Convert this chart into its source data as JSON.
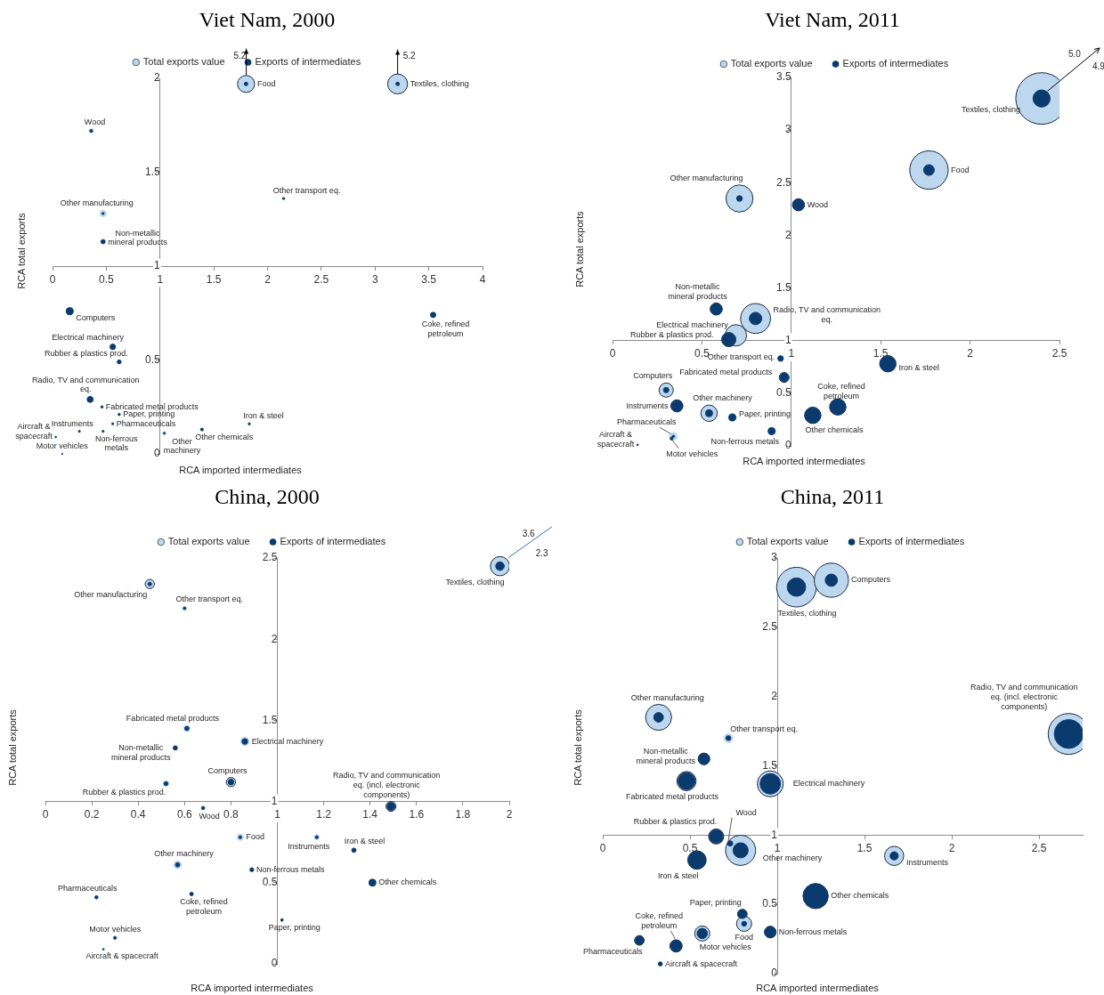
{
  "chart_data": [
    {
      "type": "bubble",
      "title": "Viet Nam, 2000",
      "xlabel": "RCA imported intermediates",
      "ylabel": "RCA total exports",
      "x": [
        1.8,
        3.21,
        0.36,
        2.15,
        0.47,
        0.47,
        0.16,
        0.56,
        0.62,
        3.54,
        0.35,
        0.46,
        0.62,
        0.56,
        0.25,
        0.03,
        0.47,
        0.09,
        1.04,
        1.39,
        1.83
      ],
      "series": [
        {
          "name": "Total exports value",
          "color": "#bdd7ee",
          "values": [
            1.97,
            1.97,
            1.72,
            1.36,
            1.28,
            null,
            null,
            null,
            null,
            null,
            null,
            null,
            null,
            null,
            null,
            null,
            null,
            null,
            0.11,
            null,
            null
          ],
          "sizes": [
            0.735,
            1,
            0.046,
            0.02,
            0.103,
            null,
            null,
            null,
            null,
            null,
            null,
            null,
            null,
            null,
            null,
            null,
            null,
            null,
            0.032,
            null,
            null
          ]
        },
        {
          "name": "Exports of intermediates",
          "color": "#0b3b6e",
          "values": [
            1.97,
            1.97,
            1.72,
            1.36,
            1.28,
            1.13,
            0.76,
            0.57,
            0.49,
            0.74,
            0.29,
            0.25,
            0.21,
            0.16,
            0.12,
            0.09,
            0.12,
            0,
            0.11,
            0.13,
            0.16
          ],
          "sizes": [
            0.032,
            0.032,
            0.02,
            0.01,
            0.011,
            0.046,
            0.128,
            0.077,
            0.039,
            0.072,
            0.092,
            0.013,
            0.013,
            0.01,
            0.01,
            0.006,
            0.01,
            0.004,
            0.008,
            0.02,
            0.011
          ]
        }
      ],
      "xlim": [
        0,
        4
      ],
      "ylim": [
        0,
        2
      ],
      "xticks": [
        0,
        0.5,
        1,
        1.5,
        2,
        2.5,
        3,
        3.5,
        4
      ],
      "yticks": [
        0,
        0.5,
        1,
        1.5,
        2
      ],
      "legend": "top",
      "annotations": [
        {
          "text": "Food",
          "x": 1.8,
          "y": 1.97
        },
        {
          "text": "Textiles, clothing",
          "x": 3.21,
          "y": 1.97
        },
        {
          "text": "Wood",
          "x": 0.36,
          "y": 1.72
        },
        {
          "text": "Other transport eq.",
          "x": 2.15,
          "y": 1.36
        },
        {
          "text": "Other manufacturing",
          "x": 0.47,
          "y": 1.28
        },
        {
          "text": "Non-metallic mineral products",
          "x": 0.47,
          "y": 1.13
        },
        {
          "text": "Computers",
          "x": 0.16,
          "y": 0.76
        },
        {
          "text": "Electrical machinery",
          "x": 0.56,
          "y": 0.57
        },
        {
          "text": "Rubber & plastics prod.",
          "x": 0.62,
          "y": 0.49
        },
        {
          "text": "Coke, refined petroleum",
          "x": 3.54,
          "y": 0.74
        },
        {
          "text": "Radio, TV and communication eq.",
          "x": 0.35,
          "y": 0.29
        },
        {
          "text": "Fabricated metal products",
          "x": 0.46,
          "y": 0.25
        },
        {
          "text": "Paper, printing",
          "x": 0.62,
          "y": 0.21
        },
        {
          "text": "Pharmaceuticals",
          "x": 0.56,
          "y": 0.16
        },
        {
          "text": "Instruments",
          "x": 0.25,
          "y": 0.12
        },
        {
          "text": "Aircraft & spacecraft",
          "x": 0.03,
          "y": 0.09
        },
        {
          "text": "Non-ferrous metals",
          "x": 0.47,
          "y": 0.12
        },
        {
          "text": "Motor vehicles",
          "x": 0.09,
          "y": 0
        },
        {
          "text": "Other machinery",
          "x": 1.04,
          "y": 0.11
        },
        {
          "text": "Other chemicals",
          "x": 1.39,
          "y": 0.13
        },
        {
          "text": "Iron & steel",
          "x": 1.83,
          "y": 0.16
        },
        {
          "text": "5.2",
          "x": 1.8,
          "y": 1.97
        },
        {
          "text": "5.2",
          "x": 3.21,
          "y": 1.97
        }
      ]
    },
    {
      "type": "bubble",
      "title": "Viet Nam, 2011",
      "xlabel": "RCA imported intermediates",
      "ylabel": "RCA total exports",
      "x": [
        2.4,
        1.77,
        0.71,
        1.04,
        0.58,
        0.8,
        0.69,
        0.65,
        0.94,
        1.54,
        0.96,
        0.3,
        1.26,
        0.36,
        0.54,
        0.67,
        1.12,
        0.89,
        0.34,
        0.33,
        0.14
      ],
      "series": [
        {
          "name": "Total exports value",
          "color": "#bdd7ee",
          "values": [
            3.3,
            2.62,
            2.35,
            2.29,
            1.3,
            1.21,
            1.05,
            1.01,
            0.83,
            0.78,
            0.65,
            0.53,
            0.37,
            0.38,
            0.31,
            0.27,
            0.29,
            0.14,
            0.09,
            null,
            null
          ],
          "sizes": [
            1,
            0.555,
            0.275,
            0.055,
            0.055,
            0.336,
            0.171,
            0.076,
            0.015,
            0.101,
            0.037,
            0.076,
            0.101,
            0.055,
            0.101,
            0.023,
            0.101,
            0.023,
            0.023,
            null,
            null
          ]
        },
        {
          "name": "Exports of intermediates",
          "color": "#0b3b6e",
          "values": [
            3.3,
            2.62,
            2.35,
            2.29,
            1.3,
            1.21,
            null,
            1.01,
            0.83,
            0.78,
            0.65,
            0.53,
            0.37,
            0.38,
            0.31,
            0.27,
            0.29,
            0.14,
            0.09,
            0.07,
            0.01
          ],
          "sizes": [
            0.11,
            0.043,
            0.012,
            0.049,
            0.049,
            0.058,
            null,
            0.069,
            0.011,
            0.092,
            0.027,
            0.011,
            0.092,
            0.049,
            0.019,
            0.019,
            0.092,
            0.019,
            0.002,
            0.003,
            0.001
          ]
        }
      ],
      "xlim": [
        0,
        2.5
      ],
      "ylim": [
        0,
        3.5
      ],
      "xticks": [
        0,
        0.5,
        1,
        1.5,
        2,
        2.5
      ],
      "yticks": [
        0,
        0.5,
        1,
        1.5,
        2,
        2.5,
        3,
        3.5
      ],
      "legend": "top",
      "annotations": [
        {
          "text": "Textiles, clothing",
          "x": 2.4,
          "y": 3.3
        },
        {
          "text": "Food",
          "x": 1.77,
          "y": 2.62
        },
        {
          "text": "Other manufacturing",
          "x": 0.71,
          "y": 2.35
        },
        {
          "text": "Wood",
          "x": 1.04,
          "y": 2.29
        },
        {
          "text": "Non-metallic mineral products",
          "x": 0.58,
          "y": 1.3
        },
        {
          "text": "Radio, TV and communication eq.",
          "x": 0.8,
          "y": 1.21
        },
        {
          "text": "Electrical machinery",
          "x": 0.69,
          "y": 1.05
        },
        {
          "text": "Rubber & plastics prod.",
          "x": 0.65,
          "y": 1.01
        },
        {
          "text": "Other transport eq.",
          "x": 0.94,
          "y": 0.83
        },
        {
          "text": "Iron & steel",
          "x": 1.54,
          "y": 0.78
        },
        {
          "text": "Fabricated metal products",
          "x": 0.96,
          "y": 0.65
        },
        {
          "text": "Computers",
          "x": 0.3,
          "y": 0.53
        },
        {
          "text": "Coke, refined petroleum",
          "x": 1.26,
          "y": 0.37
        },
        {
          "text": "Instruments",
          "x": 0.36,
          "y": 0.38
        },
        {
          "text": "Other machinery",
          "x": 0.54,
          "y": 0.31
        },
        {
          "text": "Paper, printing",
          "x": 0.67,
          "y": 0.27
        },
        {
          "text": "Other chemicals",
          "x": 1.12,
          "y": 0.29
        },
        {
          "text": "Non-ferrous metals",
          "x": 0.89,
          "y": 0.14
        },
        {
          "text": "Pharmaceuticals",
          "x": 0.34,
          "y": 0.09
        },
        {
          "text": "Motor vehicles",
          "x": 0.33,
          "y": 0.07
        },
        {
          "text": "Aircraft & spacecraft",
          "x": 0.14,
          "y": 0.01
        },
        "5.0",
        "4.9"
      ]
    },
    {
      "type": "bubble",
      "title": "China, 2000",
      "xlabel": "RCA imported intermediates",
      "ylabel": "RCA total exports",
      "x": [
        1.96,
        0.45,
        0.6,
        0.61,
        0.86,
        0.56,
        0.8,
        0.52,
        0.68,
        1.49,
        0.84,
        1.17,
        1.33,
        0.57,
        0.89,
        1.41,
        0.22,
        0.63,
        1.02,
        0.3,
        0.25
      ],
      "series": [
        {
          "name": "Total exports value",
          "color": "#bdd7ee",
          "values": [
            2.45,
            2.34,
            2.19,
            1.45,
            1.37,
            null,
            1.12,
            1.11,
            null,
            0.97,
            0.78,
            0.78,
            null,
            0.61,
            null,
            null,
            null,
            null,
            null,
            0.16,
            null
          ],
          "sizes": [
            1,
            0.232,
            0.049,
            0.111,
            0.198,
            null,
            0.232,
            0.088,
            null,
            0.269,
            0.111,
            0.077,
            null,
            0.166,
            null,
            null,
            null,
            null,
            null,
            0.049,
            null
          ]
        },
        {
          "name": "Exports of intermediates",
          "color": "#0b3b6e",
          "values": [
            2.45,
            2.34,
            2.19,
            1.45,
            1.37,
            1.33,
            1.12,
            1.11,
            0.96,
            0.97,
            0.78,
            0.78,
            0.7,
            0.61,
            0.58,
            0.5,
            0.41,
            0.43,
            0.27,
            0.16,
            0.09
          ],
          "sizes": [
            0.198,
            0.034,
            0.017,
            0.049,
            0.088,
            0.049,
            0.088,
            0.041,
            0.028,
            0.166,
            0.022,
            0.022,
            0.049,
            0.049,
            0.041,
            0.137,
            0.028,
            0.034,
            0.017,
            0.017,
            0.007
          ]
        }
      ],
      "xlim": [
        0,
        2
      ],
      "ylim": [
        0,
        2.5
      ],
      "xticks": [
        0,
        0.2,
        0.4,
        0.6,
        0.8,
        1,
        1.2,
        1.4,
        1.6,
        1.8,
        2
      ],
      "yticks": [
        0,
        0.5,
        1,
        1.5,
        2,
        2.5
      ],
      "legend": "top",
      "annotations": [
        {
          "text": "Textiles, clothing",
          "x": 1.96,
          "y": 2.45
        },
        {
          "text": "Other manufacturing",
          "x": 0.45,
          "y": 2.34
        },
        {
          "text": "Other transport eq.",
          "x": 0.6,
          "y": 2.19
        },
        {
          "text": "Fabricated metal products",
          "x": 0.61,
          "y": 1.45
        },
        {
          "text": "Electrical machinery",
          "x": 0.86,
          "y": 1.37
        },
        {
          "text": "Non-metallic mineral products",
          "x": 0.56,
          "y": 1.33
        },
        {
          "text": "Computers",
          "x": 0.8,
          "y": 1.12
        },
        {
          "text": "Rubber & plastics prod.",
          "x": 0.52,
          "y": 1.11
        },
        {
          "text": "Wood",
          "x": 0.68,
          "y": 0.96
        },
        {
          "text": "Radio, TV and communication eq. (incl. electronic components)",
          "x": 1.49,
          "y": 0.97
        },
        {
          "text": "Food",
          "x": 0.84,
          "y": 0.78
        },
        {
          "text": "Instruments",
          "x": 1.17,
          "y": 0.78
        },
        {
          "text": "Iron & steel",
          "x": 1.33,
          "y": 0.7
        },
        {
          "text": "Other machinery",
          "x": 0.57,
          "y": 0.61
        },
        {
          "text": "Non-ferrous metals",
          "x": 0.89,
          "y": 0.58
        },
        {
          "text": "Other chemicals",
          "x": 1.41,
          "y": 0.5
        },
        {
          "text": "Pharmaceuticals",
          "x": 0.22,
          "y": 0.41
        },
        {
          "text": "Coke, refined petroleum",
          "x": 0.63,
          "y": 0.43
        },
        {
          "text": "Paper, printing",
          "x": 1.02,
          "y": 0.27
        },
        {
          "text": "Motor vehicles",
          "x": 0.3,
          "y": 0.16
        },
        {
          "text": "Aircraft & spacecraft",
          "x": 0.25,
          "y": 0.09
        },
        "3.6",
        "2.3"
      ]
    },
    {
      "type": "bubble",
      "title": "China, 2011",
      "xlabel": "RCA imported intermediates",
      "ylabel": "RCA total exports",
      "x": [
        1.11,
        1.31,
        0.32,
        0.72,
        0.58,
        0.48,
        0.96,
        2.67,
        0.65,
        0.73,
        0.79,
        0.54,
        1.67,
        1.22,
        0.8,
        0.81,
        0.96,
        0.57,
        0.42,
        0.21,
        0.33
      ],
      "series": [
        {
          "name": "Total exports value",
          "color": "#bdd7ee",
          "values": [
            2.79,
            2.84,
            1.85,
            1.7,
            1.55,
            1.39,
            1.37,
            1.73,
            0.99,
            0.94,
            0.89,
            0.82,
            0.85,
            0.56,
            0.43,
            0.36,
            0.3,
            0.29,
            0.2,
            0.24,
            null
          ],
          "sizes": [
            0.94,
            0.697,
            0.403,
            0.047,
            0.082,
            0.22,
            0.403,
            1,
            0.137,
            0.021,
            0.54,
            0.204,
            0.22,
            0.381,
            0.055,
            0.137,
            0.082,
            0.137,
            0.09,
            0.055,
            null
          ]
        },
        {
          "name": "Exports of intermediates",
          "color": "#0b3b6e",
          "values": [
            2.79,
            2.84,
            1.85,
            1.7,
            1.55,
            1.39,
            1.37,
            1.73,
            0.99,
            0.94,
            0.89,
            0.82,
            0.85,
            0.56,
            0.43,
            0.36,
            0.3,
            0.29,
            0.2,
            0.24,
            0.07
          ],
          "sizes": [
            0.204,
            0.09,
            0.055,
            0.014,
            0.073,
            0.174,
            0.25,
            0.496,
            0.112,
            0.017,
            0.137,
            0.189,
            0.04,
            0.36,
            0.047,
            0.014,
            0.073,
            0.064,
            0.08,
            0.047,
            0.01
          ]
        }
      ],
      "xlim": [
        0,
        2.75
      ],
      "ylim": [
        0,
        3
      ],
      "xticks": [
        0,
        0.5,
        1,
        1.5,
        2,
        2.5
      ],
      "yticks": [
        0,
        0.5,
        1,
        1.5,
        2,
        2.5,
        3
      ],
      "legend": "top",
      "annotations": [
        {
          "text": "Textiles, clothing",
          "x": 1.11,
          "y": 2.79
        },
        {
          "text": "Computers",
          "x": 1.31,
          "y": 2.84
        },
        {
          "text": "Other manufacturing",
          "x": 0.32,
          "y": 1.85
        },
        {
          "text": "Other transport eq.",
          "x": 0.72,
          "y": 1.7
        },
        {
          "text": "Non-metallic mineral products",
          "x": 0.58,
          "y": 1.55
        },
        {
          "text": "Fabricated metal products",
          "x": 0.48,
          "y": 1.39
        },
        {
          "text": "Electrical machinery",
          "x": 0.96,
          "y": 1.37
        },
        {
          "text": "Radio, TV and communication eq. (incl. electronic components)",
          "x": 2.67,
          "y": 1.73
        },
        {
          "text": "Rubber & plastics prod.",
          "x": 0.65,
          "y": 0.99
        },
        {
          "text": "Wood",
          "x": 0.73,
          "y": 0.94
        },
        {
          "text": "Other machinery",
          "x": 0.79,
          "y": 0.89
        },
        {
          "text": "Iron & steel",
          "x": 0.54,
          "y": 0.82
        },
        {
          "text": "Instruments",
          "x": 1.67,
          "y": 0.85
        },
        {
          "text": "Other chemicals",
          "x": 1.22,
          "y": 0.56
        },
        {
          "text": "Paper, printing",
          "x": 0.8,
          "y": 0.43
        },
        {
          "text": "Food",
          "x": 0.81,
          "y": 0.36
        },
        {
          "text": "Non-ferrous metals",
          "x": 0.96,
          "y": 0.3
        },
        {
          "text": "Motor vehicles",
          "x": 0.57,
          "y": 0.29
        },
        {
          "text": "Coke, refined petroleum",
          "x": 0.42,
          "y": 0.2
        },
        {
          "text": "Pharmaceuticals",
          "x": 0.21,
          "y": 0.24
        },
        {
          "text": "Aircraft & spacecraft",
          "x": 0.33,
          "y": 0.07
        }
      ]
    }
  ]
}
